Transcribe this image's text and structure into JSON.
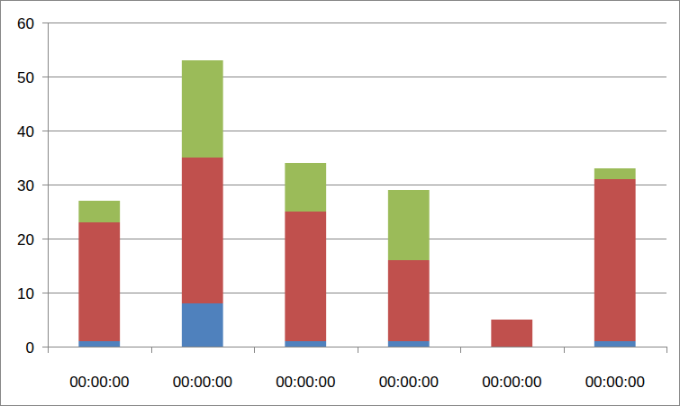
{
  "chart_data": {
    "type": "bar",
    "stacked": true,
    "grid": true,
    "categories": [
      "00:00:00",
      "00:00:00",
      "00:00:00",
      "00:00:00",
      "00:00:00",
      "00:00:00"
    ],
    "series": [
      {
        "color": "#4f81bd",
        "values": [
          1,
          8,
          1,
          1,
          0,
          1
        ]
      },
      {
        "color": "#c0504d",
        "values": [
          22,
          27,
          24,
          15,
          5,
          30
        ]
      },
      {
        "color": "#9bbb59",
        "values": [
          4,
          18,
          9,
          13,
          0,
          2
        ]
      }
    ],
    "ylim": [
      0,
      60
    ],
    "yticks": [
      0,
      10,
      20,
      30,
      40,
      50,
      60
    ]
  }
}
